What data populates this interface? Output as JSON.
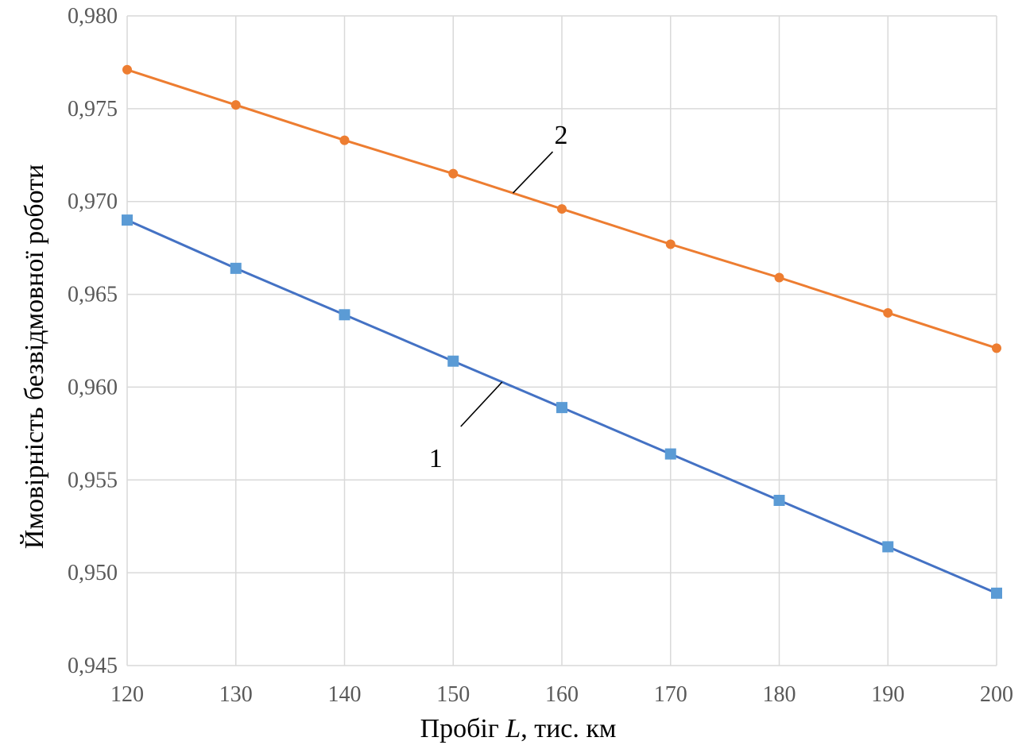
{
  "chart_data": {
    "type": "line",
    "title": "",
    "xlabel_parts": [
      "Пробіг ",
      "L",
      ", тис. км"
    ],
    "ylabel": "Ймовірність безвідмовної роботи",
    "x": [
      120,
      130,
      140,
      150,
      160,
      170,
      180,
      190,
      200
    ],
    "xlim": [
      120,
      200
    ],
    "ylim": [
      0.945,
      0.98
    ],
    "x_ticks": [
      "120",
      "130",
      "140",
      "150",
      "160",
      "170",
      "180",
      "190",
      "200"
    ],
    "y_ticks": [
      "0,945",
      "0,950",
      "0,955",
      "0,960",
      "0,965",
      "0,970",
      "0,975",
      "0,980"
    ],
    "grid": true,
    "series": [
      {
        "label": "1",
        "color": "#4472c4",
        "marker_color": "#5b9bd5",
        "marker": "square",
        "values": [
          0.969,
          0.9664,
          0.9639,
          0.9614,
          0.9589,
          0.9564,
          0.9539,
          0.9514,
          0.9489
        ]
      },
      {
        "label": "2",
        "color": "#ed7d31",
        "marker_color": "#ed7d31",
        "marker": "circle",
        "values": [
          0.9771,
          0.9752,
          0.9733,
          0.9715,
          0.9696,
          0.9677,
          0.9659,
          0.964,
          0.9621
        ]
      }
    ]
  }
}
